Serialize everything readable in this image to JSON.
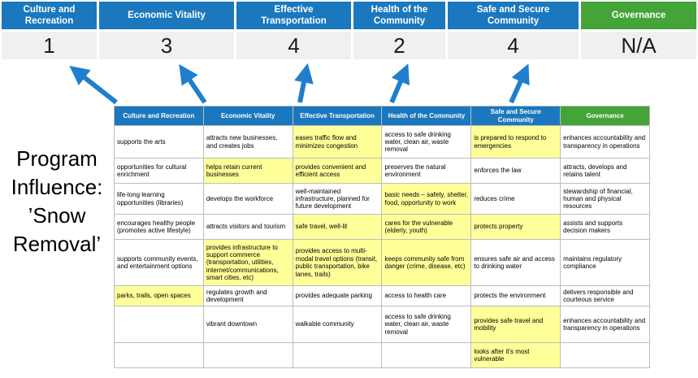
{
  "colors": {
    "blue": "#1B78BE",
    "green": "#44A437",
    "hl": "#FFFF99",
    "arrow": "#1F7FCC",
    "score_bg": "#F0F0F1",
    "border": "#BDBDBD"
  },
  "scoreboard": {
    "items": [
      {
        "label": "Culture and Recreation",
        "score": "1"
      },
      {
        "label": "Economic Vitality",
        "score": "3"
      },
      {
        "label": "Effective Transportation",
        "score": "4"
      },
      {
        "label": "Health of the Community",
        "score": "2"
      },
      {
        "label": "Safe and Secure Community",
        "score": "4"
      },
      {
        "label": "Governance",
        "score": "N/A"
      }
    ]
  },
  "program_label": "Program Influence: ’Snow Removal’",
  "matrix": {
    "headers": [
      "Culture and Recreation",
      "Economic Vitality",
      "Effective Transportation",
      "Health of the Community",
      "Safe and Secure Community",
      "Governance"
    ],
    "rows": [
      [
        {
          "text": "supports the arts"
        },
        {
          "text": "attracts new businesses, and creates jobs"
        },
        {
          "text": "eases traffic flow and minimizes congestion",
          "hl": true
        },
        {
          "text": "access to safe drinking water, clean air, waste removal"
        },
        {
          "text": "is prepared to respond to emergencies",
          "hl": true
        },
        {
          "text": "enhances accountability and transparency in operations"
        }
      ],
      [
        {
          "text": "opportunities for cultural enrichment"
        },
        {
          "text": "helps retain current businesses",
          "hl": true
        },
        {
          "text": "provides convenient and efficient access",
          "hl": true
        },
        {
          "text": "preserves the natural environment"
        },
        {
          "text": "enforces the law"
        },
        {
          "text": "attracts, develops and retains talent"
        }
      ],
      [
        {
          "text": "life-long learning opportunities (libraries)"
        },
        {
          "text": "develops the workforce"
        },
        {
          "text": "well-maintained infrastructure, planned for future development"
        },
        {
          "text": "basic needs – safety, shelter, food, opportunity to work",
          "hl": true
        },
        {
          "text": "reduces crime"
        },
        {
          "text": "stewardship of financial, human and physical resources"
        }
      ],
      [
        {
          "text": "encourages healthy people (promotes active lifestyle)"
        },
        {
          "text": "attracts visitors and tourism"
        },
        {
          "text": "safe travel, well-lit",
          "hl": true
        },
        {
          "text": "cares for the vulnerable (elderly, youth)",
          "hl": true
        },
        {
          "text": "protects property",
          "hl": true
        },
        {
          "text": "assists and supports decision makers"
        }
      ],
      [
        {
          "text": "supports community events, and entertainment options"
        },
        {
          "text": "provides infrastructure to support commerce (transportation, utilities, internet/communications, smart cities, etc)",
          "hl": true
        },
        {
          "text": "provides access to multi-modal travel options (transit, public transportation, bike lanes, trails)",
          "hl": true
        },
        {
          "text": "keeps community safe from danger (crime, disease, etc)",
          "hl": true
        },
        {
          "text": "ensures safe air and access to drinking water"
        },
        {
          "text": "maintains regulatory compliance"
        }
      ],
      [
        {
          "text": "parks, trails, open spaces",
          "hl": true
        },
        {
          "text": "regulates growth and development"
        },
        {
          "text": "provides adequate parking"
        },
        {
          "text": "access to health care"
        },
        {
          "text": "protects the environment"
        },
        {
          "text": "delivers responsible and courteous service"
        }
      ],
      [
        {
          "text": ""
        },
        {
          "text": "vibrant downtown"
        },
        {
          "text": "walkable community"
        },
        {
          "text": "access to safe drinking water, clean air, waste removal"
        },
        {
          "text": "provides safe travel and mobility",
          "hl": true
        },
        {
          "text": "enhances accountability and transparency in operations"
        }
      ],
      [
        {
          "text": ""
        },
        {
          "text": ""
        },
        {
          "text": ""
        },
        {
          "text": ""
        },
        {
          "text": "looks after it's most vulnerable",
          "hl": true
        },
        {
          "text": ""
        }
      ]
    ]
  }
}
